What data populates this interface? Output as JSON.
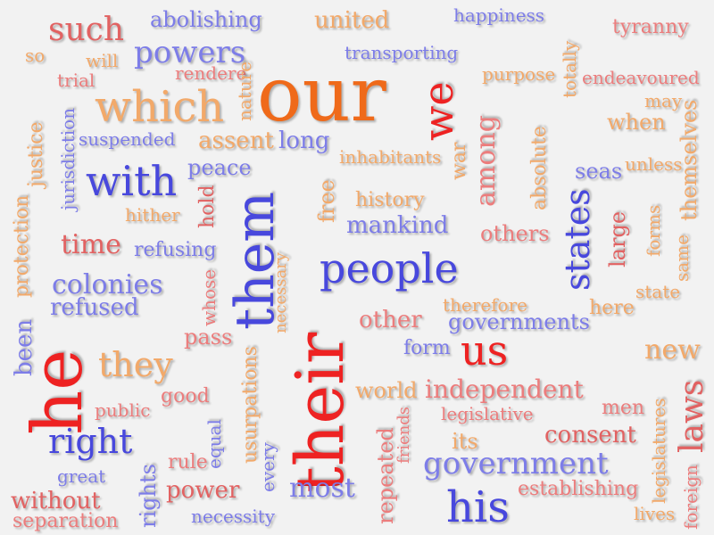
{
  "words": {
    "our": "our",
    "their": "their",
    "he": "he",
    "them": "them",
    "his": "his",
    "people": "people",
    "which": "which",
    "we": "we",
    "with": "with",
    "us": "us",
    "laws": "laws",
    "states": "states",
    "government": "government",
    "right": "right",
    "they": "they",
    "such": "such",
    "powers": "powers",
    "most": "most",
    "independent": "independent",
    "among": "among",
    "colonies": "colonies",
    "time": "time",
    "abolishing": "abolishing",
    "united": "united",
    "happiness": "happiness",
    "tyranny": "tyranny",
    "so": "so",
    "will": "will",
    "transporting": "transporting",
    "trial": "trial",
    "rendere": "rendere",
    "nature": "nature",
    "purpose": "purpose",
    "totally": "totally",
    "endeavoured": "endeavoured",
    "may": "may",
    "when": "when",
    "themselves": "themselves",
    "jurisdiction": "jurisdiction",
    "justice": "justice",
    "suspended": "suspended",
    "assent": "assent",
    "long": "long",
    "absolute": "absolute",
    "war": "war",
    "inhabitants": "inhabitants",
    "seas": "seas",
    "unless": "unless",
    "peace": "peace",
    "free": "free",
    "hold": "hold",
    "history": "history",
    "large": "large",
    "forms": "forms",
    "hither": "hither",
    "mankind": "mankind",
    "others": "others",
    "same": "same",
    "refusing": "refusing",
    "necessary": "necessary",
    "protection": "protection",
    "whose": "whose",
    "state": "state",
    "therefore": "therefore",
    "here": "here",
    "refused": "refused",
    "other": "other",
    "governments": "governments",
    "been": "been",
    "pass": "pass",
    "form": "form",
    "new": "new",
    "usurpations": "usurpations",
    "good": "good",
    "world": "world",
    "public": "public",
    "equal": "equal",
    "legislative": "legislative",
    "men": "men",
    "consent": "consent",
    "its": "its",
    "friends": "friends",
    "repeated": "repeated",
    "legislatures": "legislatures",
    "great": "great",
    "rule": "rule",
    "every": "every",
    "rights": "rights",
    "power": "power",
    "without": "without",
    "establishing": "establishing",
    "separation": "separation",
    "necessity": "necessity",
    "lives": "lives",
    "foreign": "foreign"
  },
  "colors": {
    "orange": "#ef6a1a",
    "red": "#ee2222",
    "blue": "#4848dd",
    "lightblue": "#7d7de8",
    "pink": "#ec7d7d",
    "peach": "#f2a96a",
    "rose": "#e26262"
  }
}
